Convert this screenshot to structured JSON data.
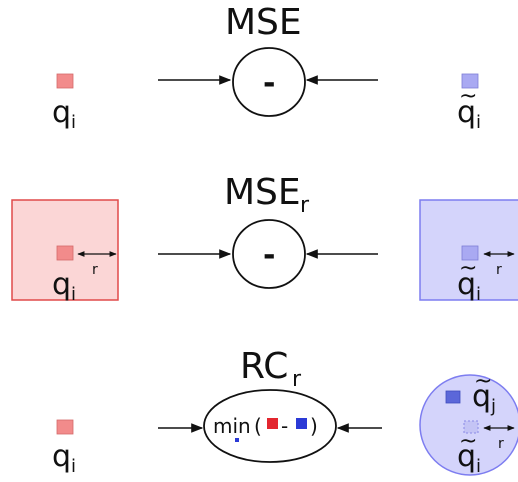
{
  "rows": [
    {
      "title": "MSE",
      "title_sub": "",
      "operator": "-",
      "left_label": "q",
      "left_sub": "i",
      "right_label": "q",
      "right_tilde": "~",
      "right_sub": "i"
    },
    {
      "title": "MSE",
      "title_sub": "r",
      "operator": "-",
      "left_label": "q",
      "left_sub": "i",
      "right_label": "q",
      "right_tilde": "~",
      "right_sub": "i",
      "radius_label": "r"
    },
    {
      "title": "RC",
      "title_sub": "r",
      "operator_min": "min",
      "operator_min_sub": "",
      "left_label": "q",
      "left_sub": "i",
      "right_label_top": "q",
      "right_tilde_top": "~",
      "right_sub_top": "j",
      "right_label_bottom": "q",
      "right_tilde_bottom": "~",
      "right_sub_bottom": "i",
      "radius_label": "r"
    }
  ],
  "colors": {
    "red_fill": "#f28b8b",
    "red_region_fill": "#fbd6d6",
    "red_region_stroke": "#e04a4a",
    "red_strong": "#e3262f",
    "blue_fill": "#a9a9f2",
    "blue_region_fill": "#d4d4fb",
    "blue_region_stroke": "#7d7df0",
    "blue_strong": "#2b3ad6",
    "blue_square": "#5b67d9"
  }
}
